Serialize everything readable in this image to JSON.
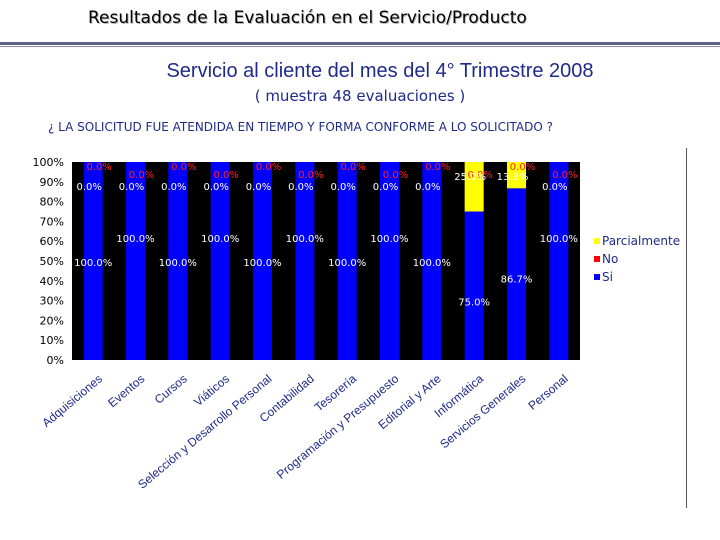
{
  "header": {
    "title": "Resultados de la Evaluación en el Servicio/Producto",
    "subtitle": "Servicio al cliente del mes del 4° Trimestre 2008",
    "sample": "( muestra 48 evaluaciones )",
    "question": "¿ LA SOLICITUD FUE ATENDIDA EN TIEMPO Y FORMA CONFORME A LO SOLICITADO ?"
  },
  "chart_data": {
    "type": "bar",
    "stacked": true,
    "percent": true,
    "categories": [
      "Adquisiciones",
      "Eventos",
      "Cursos",
      "Viáticos",
      "Selección y Desarrollo Personal",
      "Contabilidad",
      "Tesorería",
      "Programación y Presupuesto",
      "Editorial y Arte",
      "Informática",
      "Servicios Generales",
      "Personal"
    ],
    "series": [
      {
        "name": "Si",
        "color": "#0000ff",
        "values": [
          100,
          100,
          100,
          100,
          100,
          100,
          100,
          100,
          100,
          75,
          86.7,
          100
        ],
        "labels": [
          "100.0%",
          "100.0%",
          "100.0%",
          "100.0%",
          "100.0%",
          "100.0%",
          "100.0%",
          "100.0%",
          "100.0%",
          "75.0%",
          "86.7%",
          "100.0%"
        ]
      },
      {
        "name": "No",
        "color": "#ff0000",
        "values": [
          0,
          0,
          0,
          0,
          0,
          0,
          0,
          0,
          0,
          0,
          0,
          0
        ],
        "labels": [
          "0.0%",
          "0.0%",
          "0.0%",
          "0.0%",
          "0.0%",
          "0.0%",
          "0.0%",
          "0.0%",
          "0.0%",
          "0.0%",
          "0.0%",
          "0.0%"
        ]
      },
      {
        "name": "Parcialmente",
        "color": "#ffff00",
        "values": [
          0,
          0,
          0,
          0,
          0,
          0,
          0,
          0,
          0,
          25,
          13.3,
          0
        ],
        "labels": [
          "0.0%",
          "0.0%",
          "0.0%",
          "0.0%",
          "0.0%",
          "0.0%",
          "0.0%",
          "0.0%",
          "0.0%",
          "25.0%",
          "13.3%",
          "0.0%"
        ]
      }
    ],
    "legend": [
      "Parcialmente",
      "No",
      "Si"
    ],
    "legend_position": "right",
    "y_ticks": [
      "0%",
      "10%",
      "20%",
      "30%",
      "40%",
      "50%",
      "60%",
      "70%",
      "80%",
      "90%",
      "100%"
    ],
    "ylim": [
      0,
      100
    ],
    "background": "#000000"
  }
}
